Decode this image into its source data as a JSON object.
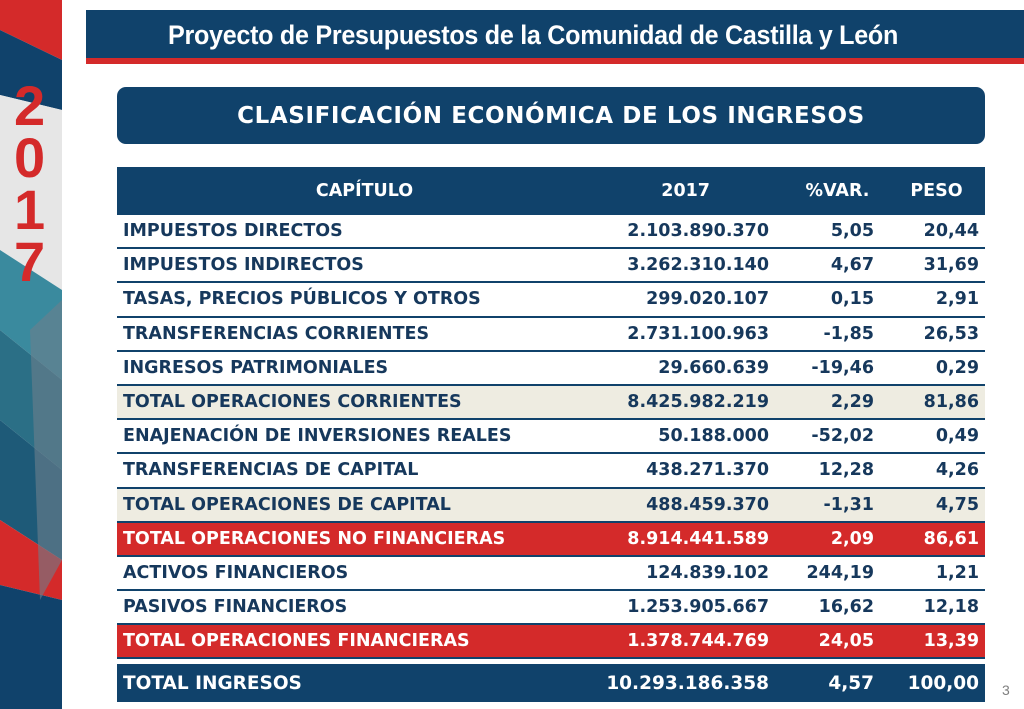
{
  "header": {
    "title": "Proyecto de Presupuestos de la Comunidad de Castilla y León"
  },
  "side": {
    "year_digits": [
      "2",
      "0",
      "1",
      "7"
    ]
  },
  "section": {
    "title": "CLASIFICACIÓN ECONÓMICA DE LOS INGRESOS"
  },
  "table": {
    "headers": [
      "CAPÍTULO",
      "2017",
      "%VAR.",
      "PESO"
    ],
    "rows": [
      {
        "cells": [
          "IMPUESTOS DIRECTOS",
          "2.103.890.370",
          "5,05",
          "20,44"
        ]
      },
      {
        "cells": [
          "IMPUESTOS INDIRECTOS",
          "3.262.310.140",
          "4,67",
          "31,69"
        ]
      },
      {
        "cells": [
          "TASAS, PRECIOS PÚBLICOS  Y OTROS",
          "299.020.107",
          "0,15",
          "2,91"
        ]
      },
      {
        "cells": [
          "TRANSFERENCIAS CORRIENTES",
          "2.731.100.963",
          "-1,85",
          "26,53"
        ]
      },
      {
        "cells": [
          "INGRESOS PATRIMONIALES",
          "29.660.639",
          "-19,46",
          "0,29"
        ]
      },
      {
        "cells": [
          "TOTAL OPERACIONES CORRIENTES",
          "8.425.982.219",
          "2,29",
          "81,86"
        ]
      },
      {
        "cells": [
          "ENAJENACIÓN DE INVERSIONES REALES",
          "50.188.000",
          "-52,02",
          "0,49"
        ]
      },
      {
        "cells": [
          "TRANSFERENCIAS DE CAPITAL",
          "438.271.370",
          "12,28",
          "4,26"
        ]
      },
      {
        "cells": [
          "TOTAL OPERACIONES DE CAPITAL",
          "488.459.370",
          "-1,31",
          "4,75"
        ]
      },
      {
        "cells": [
          "TOTAL OPERACIONES NO FINANCIERAS",
          "8.914.441.589",
          "2,09",
          "86,61"
        ]
      },
      {
        "cells": [
          "ACTIVOS FINANCIEROS",
          "124.839.102",
          "244,19",
          "1,21"
        ]
      },
      {
        "cells": [
          "PASIVOS FINANCIEROS",
          "1.253.905.667",
          "16,62",
          "12,18"
        ]
      },
      {
        "cells": [
          "TOTAL OPERACIONES FINANCIERAS",
          "1.378.744.769",
          "24,05",
          "13,39"
        ]
      },
      {
        "cells": [
          "TOTAL INGRESOS",
          "10.293.186.358",
          "4,57",
          "100,00"
        ]
      }
    ]
  },
  "footer": {
    "page_number": "3"
  },
  "colors": {
    "navy": "#10426b",
    "red": "#d42a2a",
    "subtotal_bg": "#eeece1",
    "text": "#16385c"
  }
}
